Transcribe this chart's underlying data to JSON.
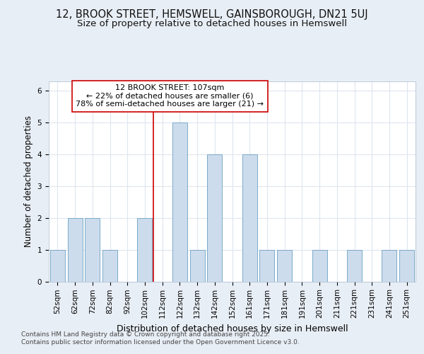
{
  "title_line1": "12, BROOK STREET, HEMSWELL, GAINSBOROUGH, DN21 5UJ",
  "title_line2": "Size of property relative to detached houses in Hemswell",
  "xlabel": "Distribution of detached houses by size in Hemswell",
  "ylabel": "Number of detached properties",
  "categories": [
    "52sqm",
    "62sqm",
    "72sqm",
    "82sqm",
    "92sqm",
    "102sqm",
    "112sqm",
    "122sqm",
    "132sqm",
    "142sqm",
    "152sqm",
    "161sqm",
    "171sqm",
    "181sqm",
    "191sqm",
    "201sqm",
    "211sqm",
    "221sqm",
    "231sqm",
    "241sqm",
    "251sqm"
  ],
  "values": [
    1,
    2,
    2,
    1,
    0,
    2,
    0,
    5,
    1,
    4,
    0,
    4,
    1,
    1,
    0,
    1,
    0,
    1,
    0,
    1,
    1
  ],
  "bar_color": "#ccdcec",
  "bar_edge_color": "#7aaaca",
  "vline_x": 5.5,
  "vline_color": "#cc0000",
  "annotation_text": "12 BROOK STREET: 107sqm\n← 22% of detached houses are smaller (6)\n78% of semi-detached houses are larger (21) →",
  "annotation_box_color": "#ffffff",
  "annotation_box_edge_color": "#cc0000",
  "ylim": [
    0,
    6.3
  ],
  "yticks": [
    0,
    1,
    2,
    3,
    4,
    5,
    6
  ],
  "footer_text": "Contains HM Land Registry data © Crown copyright and database right 2025.\nContains public sector information licensed under the Open Government Licence v3.0.",
  "bg_color": "#e8eef5",
  "plot_bg_color": "#ffffff",
  "grid_color": "#dde6ef",
  "title_fontsize": 10.5,
  "subtitle_fontsize": 9.5,
  "tick_fontsize": 7.5,
  "ylabel_fontsize": 8.5,
  "xlabel_fontsize": 9,
  "footer_fontsize": 6.5,
  "annot_fontsize": 8
}
